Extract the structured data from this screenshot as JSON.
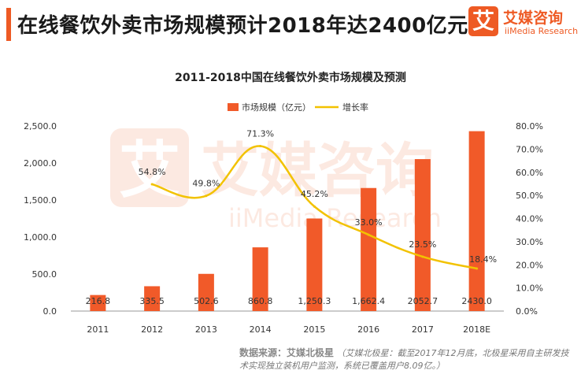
{
  "header": {
    "title": "在线餐饮外卖市场规模预计2018年达2400亿元"
  },
  "logo": {
    "mark": "艾",
    "name_cn": "艾媒咨询",
    "name_en": "iiMedia Research"
  },
  "watermark": {
    "mark": "艾",
    "text_cn": "艾媒咨询",
    "text_en": "iiMedia Research"
  },
  "colors": {
    "accent": "#ee5a24",
    "bar": "#f15a29",
    "line": "#f2c200"
  },
  "chart_data": {
    "type": "bar",
    "title": "2011-2018中国在线餐饮外卖市场规模及预测",
    "categories": [
      "2011",
      "2012",
      "2013",
      "2014",
      "2015",
      "2016",
      "2017",
      "2018E"
    ],
    "series": [
      {
        "name": "市场规模（亿元）",
        "type": "bar",
        "axis": "left",
        "values": [
          216.8,
          335.5,
          502.6,
          860.8,
          1250.3,
          1662.4,
          2052.7,
          2430.0
        ],
        "labels": [
          "216.8",
          "335.5",
          "502.6",
          "860.8",
          "1,250.3",
          "1,662.4",
          "2052.7",
          "2430.0"
        ]
      },
      {
        "name": "增长率",
        "type": "line",
        "axis": "right",
        "x": [
          "2012",
          "2013",
          "2014",
          "2015",
          "2016",
          "2017",
          "2018E"
        ],
        "values": [
          54.8,
          49.8,
          71.3,
          45.2,
          33.0,
          23.5,
          18.4
        ],
        "labels": [
          "54.8%",
          "49.8%",
          "71.3%",
          "45.2%",
          "33.0%",
          "23.5%",
          "18.4%"
        ]
      }
    ],
    "left_axis": {
      "ylim": [
        0,
        2500
      ],
      "ticks": [
        0,
        500,
        1000,
        1500,
        2000,
        2500
      ],
      "tick_labels": [
        "0.0",
        "500.0",
        "1,000.0",
        "1,500.0",
        "2,000.0",
        "2,500.0"
      ]
    },
    "right_axis": {
      "ylim": [
        0,
        80
      ],
      "ticks": [
        0,
        10,
        20,
        30,
        40,
        50,
        60,
        70,
        80
      ],
      "tick_labels": [
        "0.0%",
        "10.0%",
        "20.0%",
        "30.0%",
        "40.0%",
        "50.0%",
        "60.0%",
        "70.0%",
        "80.0%"
      ]
    },
    "legend_position": "top-center",
    "grid": false
  },
  "source": {
    "label": "数据来源：艾媒北极星",
    "note": "（艾媒北极星：截至2017年12月底，北极星采用自主研发技术实现独立装机用户监测，系统已覆盖用户8.09亿。）"
  }
}
